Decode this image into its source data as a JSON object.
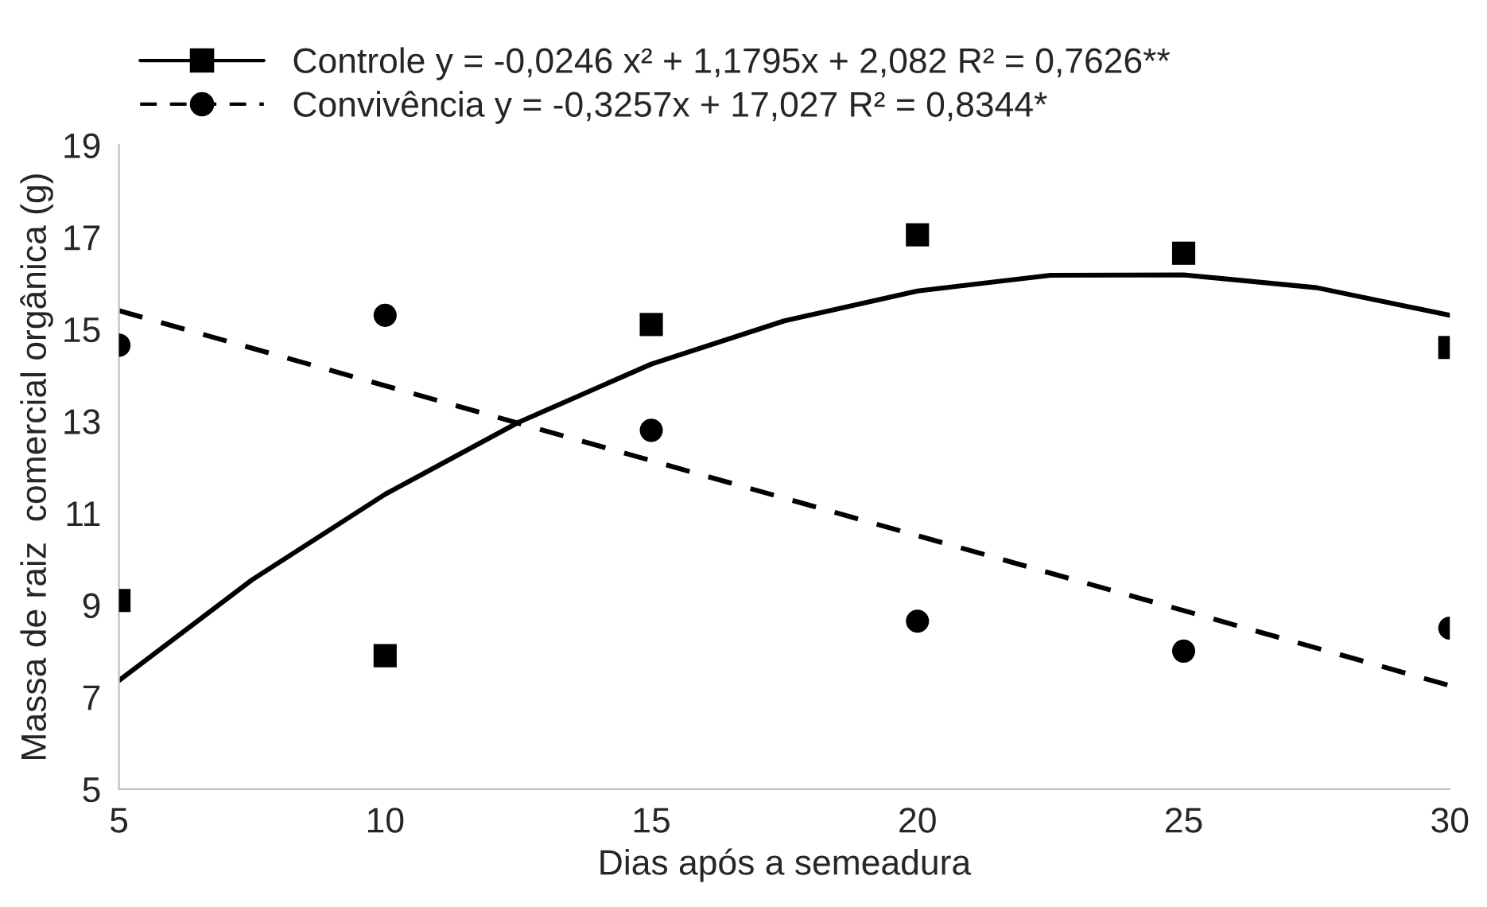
{
  "chart_data": {
    "type": "scatter",
    "xlabel": "Dias após a semeadura",
    "ylabel": "Massa de raiz  comercial orgânica (g)",
    "x": [
      5,
      10,
      15,
      20,
      25,
      30
    ],
    "series": [
      {
        "name": "Controle y = -0,0246 x² + 1,1795x + 2,082 R² = 0,7626**",
        "color": "#000000",
        "marker": "square",
        "values": [
          9.1,
          7.9,
          15.1,
          17.05,
          16.65,
          14.6
        ]
      },
      {
        "name": "Convivência y = -0,3257x + 17,027 R² = 0,8344*",
        "color": "#000000",
        "marker": "circle",
        "values": [
          14.65,
          15.3,
          12.8,
          8.65,
          8.0,
          8.5
        ]
      },
      {
        "type": "line",
        "color": "#000000",
        "line_style": "solid",
        "marker": "none",
        "x": [
          5,
          7.5,
          10,
          12.5,
          15,
          17.5,
          20,
          22.5,
          25,
          27.5,
          30
        ],
        "values": [
          7.36,
          9.55,
          11.41,
          12.97,
          14.24,
          15.18,
          15.83,
          16.17,
          16.18,
          15.9,
          15.3
        ]
      },
      {
        "type": "line",
        "color": "#000000",
        "line_style": "dashed",
        "marker": "none",
        "x": [
          5,
          30
        ],
        "values": [
          15.4,
          7.25
        ]
      }
    ],
    "xlim": [
      5,
      30
    ],
    "xticks": [
      5,
      10,
      15,
      20,
      25,
      30
    ],
    "ylim": [
      5,
      19
    ],
    "yticks": [
      5,
      7,
      9,
      11,
      13,
      15,
      17,
      19
    ],
    "grid": false,
    "legend": "top"
  }
}
